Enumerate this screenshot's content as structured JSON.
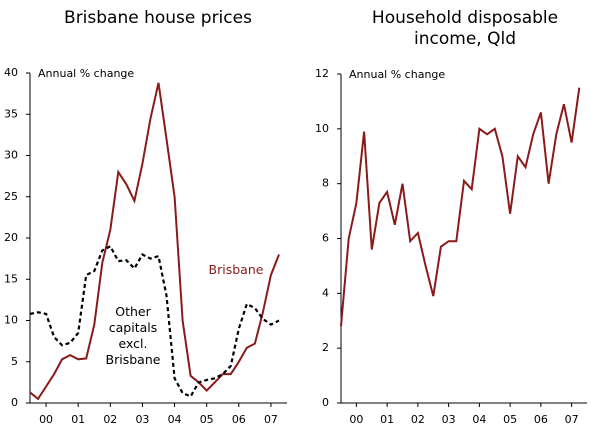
{
  "chart_data": [
    {
      "type": "line",
      "title": "Brisbane house prices",
      "y_label": "Annual % change",
      "x": [
        2000,
        2000.25,
        2000.5,
        2000.75,
        2001,
        2001.25,
        2001.5,
        2001.75,
        2002,
        2002.25,
        2002.5,
        2002.75,
        2003,
        2003.25,
        2003.5,
        2003.75,
        2004,
        2004.25,
        2004.5,
        2004.75,
        2005,
        2005.25,
        2005.5,
        2005.75,
        2006,
        2006.25,
        2006.5,
        2006.75,
        2007,
        2007.25,
        2007.5,
        2007.75
      ],
      "series": [
        {
          "name": "Brisbane",
          "color": "#8b1a1a",
          "dash": false,
          "values": [
            1.3,
            0.5,
            2,
            3.5,
            5.3,
            5.8,
            5.3,
            5.4,
            9.5,
            17,
            21,
            28,
            26.5,
            24.5,
            29,
            34.5,
            38.8,
            32,
            25,
            10,
            3.3,
            2.5,
            1.5,
            2.5,
            3.5,
            3.5,
            5,
            6.7,
            7.2,
            11,
            15.5,
            18
          ]
        },
        {
          "name": "Other capitals excl. Brisbane",
          "color": "#000000",
          "dash": true,
          "values": [
            10.8,
            11,
            10.8,
            8,
            7,
            7.3,
            8.5,
            15.5,
            16,
            18.5,
            19,
            17.2,
            17.3,
            16.3,
            18,
            17.5,
            17.8,
            13,
            3,
            1.2,
            0.8,
            2.5,
            2.8,
            3,
            3.5,
            4.5,
            9,
            12,
            11.5,
            10.2,
            9.5,
            10
          ]
        }
      ],
      "xlim": [
        2000,
        2008
      ],
      "ylim": [
        0,
        40
      ],
      "yticks": [
        0,
        5,
        10,
        15,
        20,
        25,
        30,
        35,
        40
      ],
      "xticks": [
        {
          "value": 2000.5,
          "label": "00"
        },
        {
          "value": 2001.5,
          "label": "01"
        },
        {
          "value": 2002.5,
          "label": "02"
        },
        {
          "value": 2003.5,
          "label": "03"
        },
        {
          "value": 2004.5,
          "label": "04"
        },
        {
          "value": 2005.5,
          "label": "05"
        },
        {
          "value": 2006.5,
          "label": "06"
        },
        {
          "value": 2007.5,
          "label": "07"
        }
      ]
    },
    {
      "type": "line",
      "title": "Household disposable income, Qld",
      "y_label": "Annual % change",
      "x": [
        2000,
        2000.25,
        2000.5,
        2000.75,
        2001,
        2001.25,
        2001.5,
        2001.75,
        2002,
        2002.25,
        2002.5,
        2002.75,
        2003,
        2003.25,
        2003.5,
        2003.75,
        2004,
        2004.25,
        2004.5,
        2004.75,
        2005,
        2005.25,
        2005.5,
        2005.75,
        2006,
        2006.25,
        2006.5,
        2006.75,
        2007,
        2007.25,
        2007.5,
        2007.75
      ],
      "series": [
        {
          "color": "#8b1a1a",
          "dash": false,
          "values": [
            2.8,
            6,
            7.3,
            9.9,
            5.6,
            7.3,
            7.7,
            6.5,
            8,
            5.9,
            6.2,
            5,
            3.9,
            5.7,
            5.9,
            5.9,
            8.1,
            7.8,
            10,
            9.8,
            10,
            9,
            6.9,
            9,
            8.6,
            9.8,
            10.6,
            8,
            9.8,
            10.9,
            9.5,
            11.5
          ]
        }
      ],
      "xlim": [
        2000,
        2008
      ],
      "ylim": [
        0,
        12
      ],
      "yticks": [
        0,
        2,
        4,
        6,
        8,
        10,
        12
      ],
      "xticks": [
        {
          "value": 2000.5,
          "label": "00"
        },
        {
          "value": 2001.5,
          "label": "01"
        },
        {
          "value": 2002.5,
          "label": "02"
        },
        {
          "value": 2003.5,
          "label": "03"
        },
        {
          "value": 2004.5,
          "label": "04"
        },
        {
          "value": 2005.5,
          "label": "05"
        },
        {
          "value": 2006.5,
          "label": "06"
        },
        {
          "value": 2007.5,
          "label": "07"
        }
      ]
    }
  ]
}
